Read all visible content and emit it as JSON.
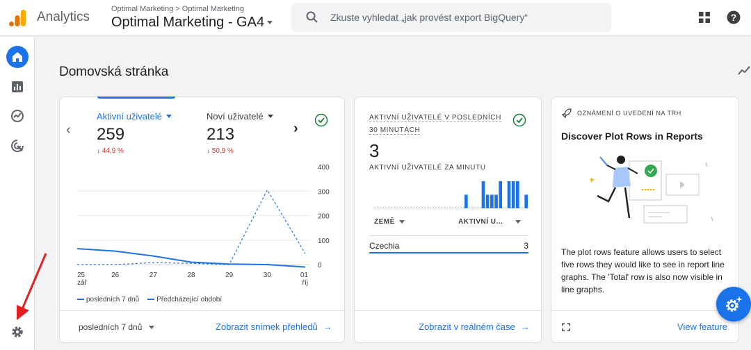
{
  "app": {
    "name": "Analytics"
  },
  "header": {
    "breadcrumb": "Optimal Marketing > Optimal Marketing",
    "property": "Optimal Marketing - GA4",
    "search_placeholder": "Zkuste vyhledat „jak provést export BigQuery“"
  },
  "page": {
    "title": "Domovská stránka"
  },
  "overview": {
    "metrics": [
      {
        "label": "Aktivní uživatelé",
        "value": "259",
        "change": "↓ 44,9 %"
      },
      {
        "label": "Noví uživatelé",
        "value": "213",
        "change": "↓ 50,9 %"
      }
    ],
    "range": "posledních 7 dnů",
    "link": "Zobrazit snímek přehledů",
    "legend": {
      "current": "posledních 7 dnů",
      "previous": "Předcházející období"
    }
  },
  "chart_data": {
    "type": "line",
    "x": [
      "25 zář",
      "26",
      "27",
      "28",
      "29",
      "30",
      "01 říj"
    ],
    "x_ticks": [
      {
        "top": "25",
        "bottom": "zář"
      },
      {
        "top": "26",
        "bottom": ""
      },
      {
        "top": "27",
        "bottom": ""
      },
      {
        "top": "28",
        "bottom": ""
      },
      {
        "top": "29",
        "bottom": ""
      },
      {
        "top": "30",
        "bottom": ""
      },
      {
        "top": "01",
        "bottom": "říj"
      }
    ],
    "y_ticks": [
      "400",
      "300",
      "200",
      "100",
      "0"
    ],
    "ylim": [
      0,
      400
    ],
    "series": [
      {
        "name": "posledních 7 dnů",
        "style": "solid",
        "values": [
          65,
          55,
          35,
          10,
          2,
          0,
          -10
        ]
      },
      {
        "name": "Předcházející období",
        "style": "dashed",
        "values": [
          0,
          0,
          8,
          5,
          0,
          305,
          45
        ]
      }
    ],
    "color": "#1a73e8"
  },
  "realtime": {
    "title": "AKTIVNÍ UŽIVATELÉ V POSLEDNÍCH 30 MINUTÁCH",
    "title_lines": [
      "AKTIVNÍ UŽIVATELÉ V POSLEDNÍCH",
      "30 MINUTÁCH"
    ],
    "value": "3",
    "per_minute_label": "AKTIVNÍ UŽIVATELÉ ZA MINUTU",
    "bars": [
      0,
      0,
      0,
      0,
      0,
      0,
      0,
      0,
      0,
      0,
      0,
      0,
      0,
      0,
      0,
      0,
      0,
      0,
      0,
      0,
      0,
      1,
      0,
      0,
      0,
      2,
      1,
      1,
      1,
      2,
      0,
      2,
      2,
      2,
      0,
      1
    ],
    "table": {
      "col1": "ZEMĚ",
      "col2": "AKTIVNÍ U...",
      "rows": [
        {
          "country": "Czechia",
          "value": "3"
        }
      ]
    },
    "link": "Zobrazit v reálném čase"
  },
  "announcement": {
    "label": "OZNÁMENÍ O UVEDENÍ NA TRH",
    "title": "Discover Plot Rows in Reports",
    "body": "The plot rows feature allows users to select five rows they would like to see in report line graphs. The 'Total' row is also now visible in line graphs.",
    "link": "View feature"
  },
  "colors": {
    "accent": "#1a73e8",
    "negative": "#d93025",
    "success": "#188038"
  }
}
